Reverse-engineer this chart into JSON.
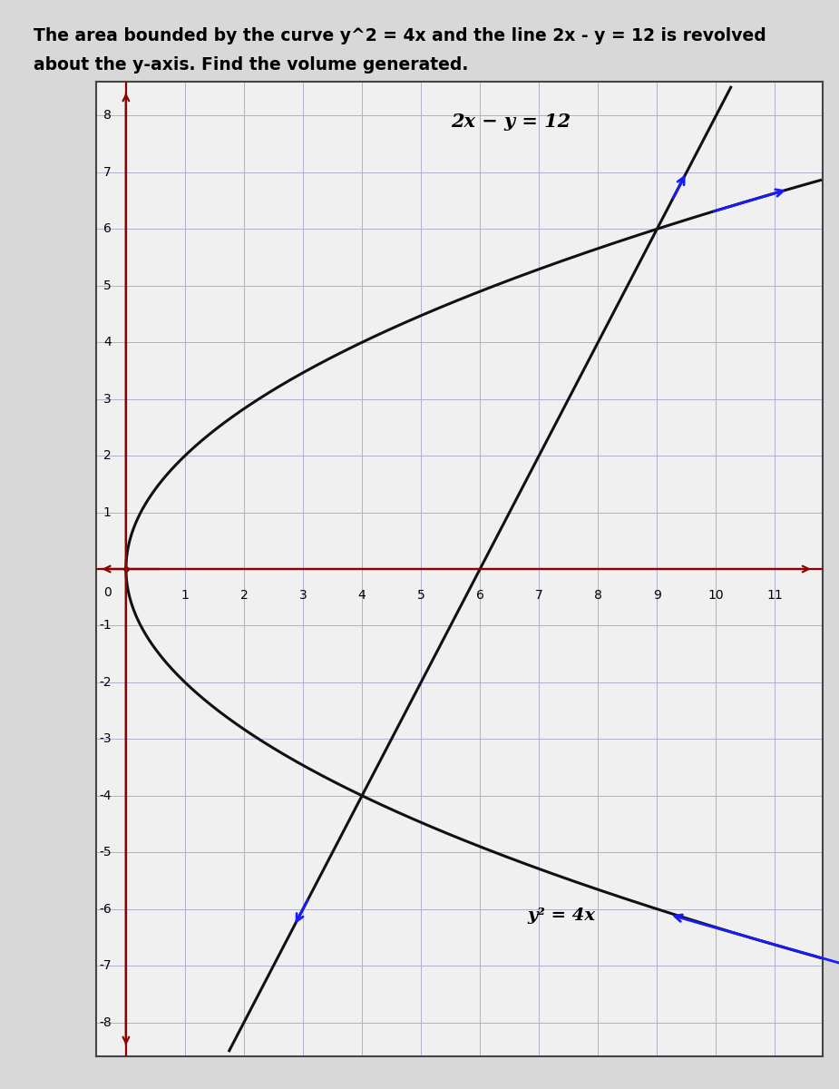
{
  "title_line1": "The area bounded by the curve y^2 = 4x and the line 2x - y = 12 is revolved",
  "title_line2": "about the y-axis. Find the volume generated.",
  "title_fontsize": 13.5,
  "x_min": -0.5,
  "x_max": 11.8,
  "y_min": -8.6,
  "y_max": 8.6,
  "x_ticks": [
    1,
    2,
    3,
    4,
    5,
    6,
    7,
    8,
    9,
    10,
    11
  ],
  "y_ticks": [
    -8,
    -7,
    -6,
    -5,
    -4,
    -3,
    -2,
    -1,
    1,
    2,
    3,
    4,
    5,
    6,
    7,
    8
  ],
  "grid_color": "#b0b0c8",
  "axis_color": "#8B0000",
  "curve_color": "#111111",
  "line_color": "#111111",
  "arrow_color": "#1a1aff",
  "label_line": "2x − y = 12",
  "label_parabola": "y² = 4x",
  "fig_bg_color": "#d8d8d8",
  "plot_bg_color": "#f0f0f0",
  "border_color": "#444444",
  "tick_fontsize": 10,
  "label_fontsize": 14
}
